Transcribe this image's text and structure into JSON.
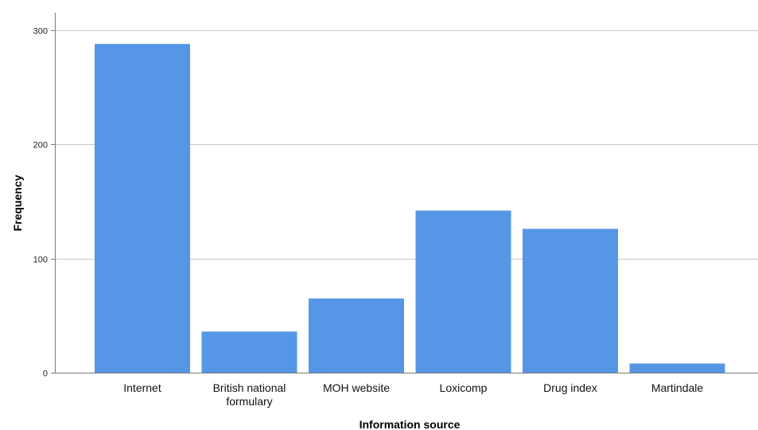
{
  "chart_data": {
    "type": "bar",
    "title": "",
    "xlabel": "Information source",
    "ylabel": "Frequency",
    "categories": [
      "Internet",
      "British national formulary",
      "MOH website",
      "Loxicomp",
      "Drug index",
      "Martindale"
    ],
    "category_lines": [
      [
        "Internet"
      ],
      [
        "British national",
        "formulary"
      ],
      [
        "MOH website"
      ],
      [
        "Loxicomp"
      ],
      [
        "Drug index"
      ],
      [
        "Martindale"
      ]
    ],
    "values": [
      288,
      36,
      65,
      142,
      126,
      8
    ],
    "ylim": [
      0,
      300
    ],
    "yticks": [
      0,
      100,
      200,
      300
    ],
    "grid": true,
    "legend": "none",
    "bar_color": "#5596e6"
  }
}
